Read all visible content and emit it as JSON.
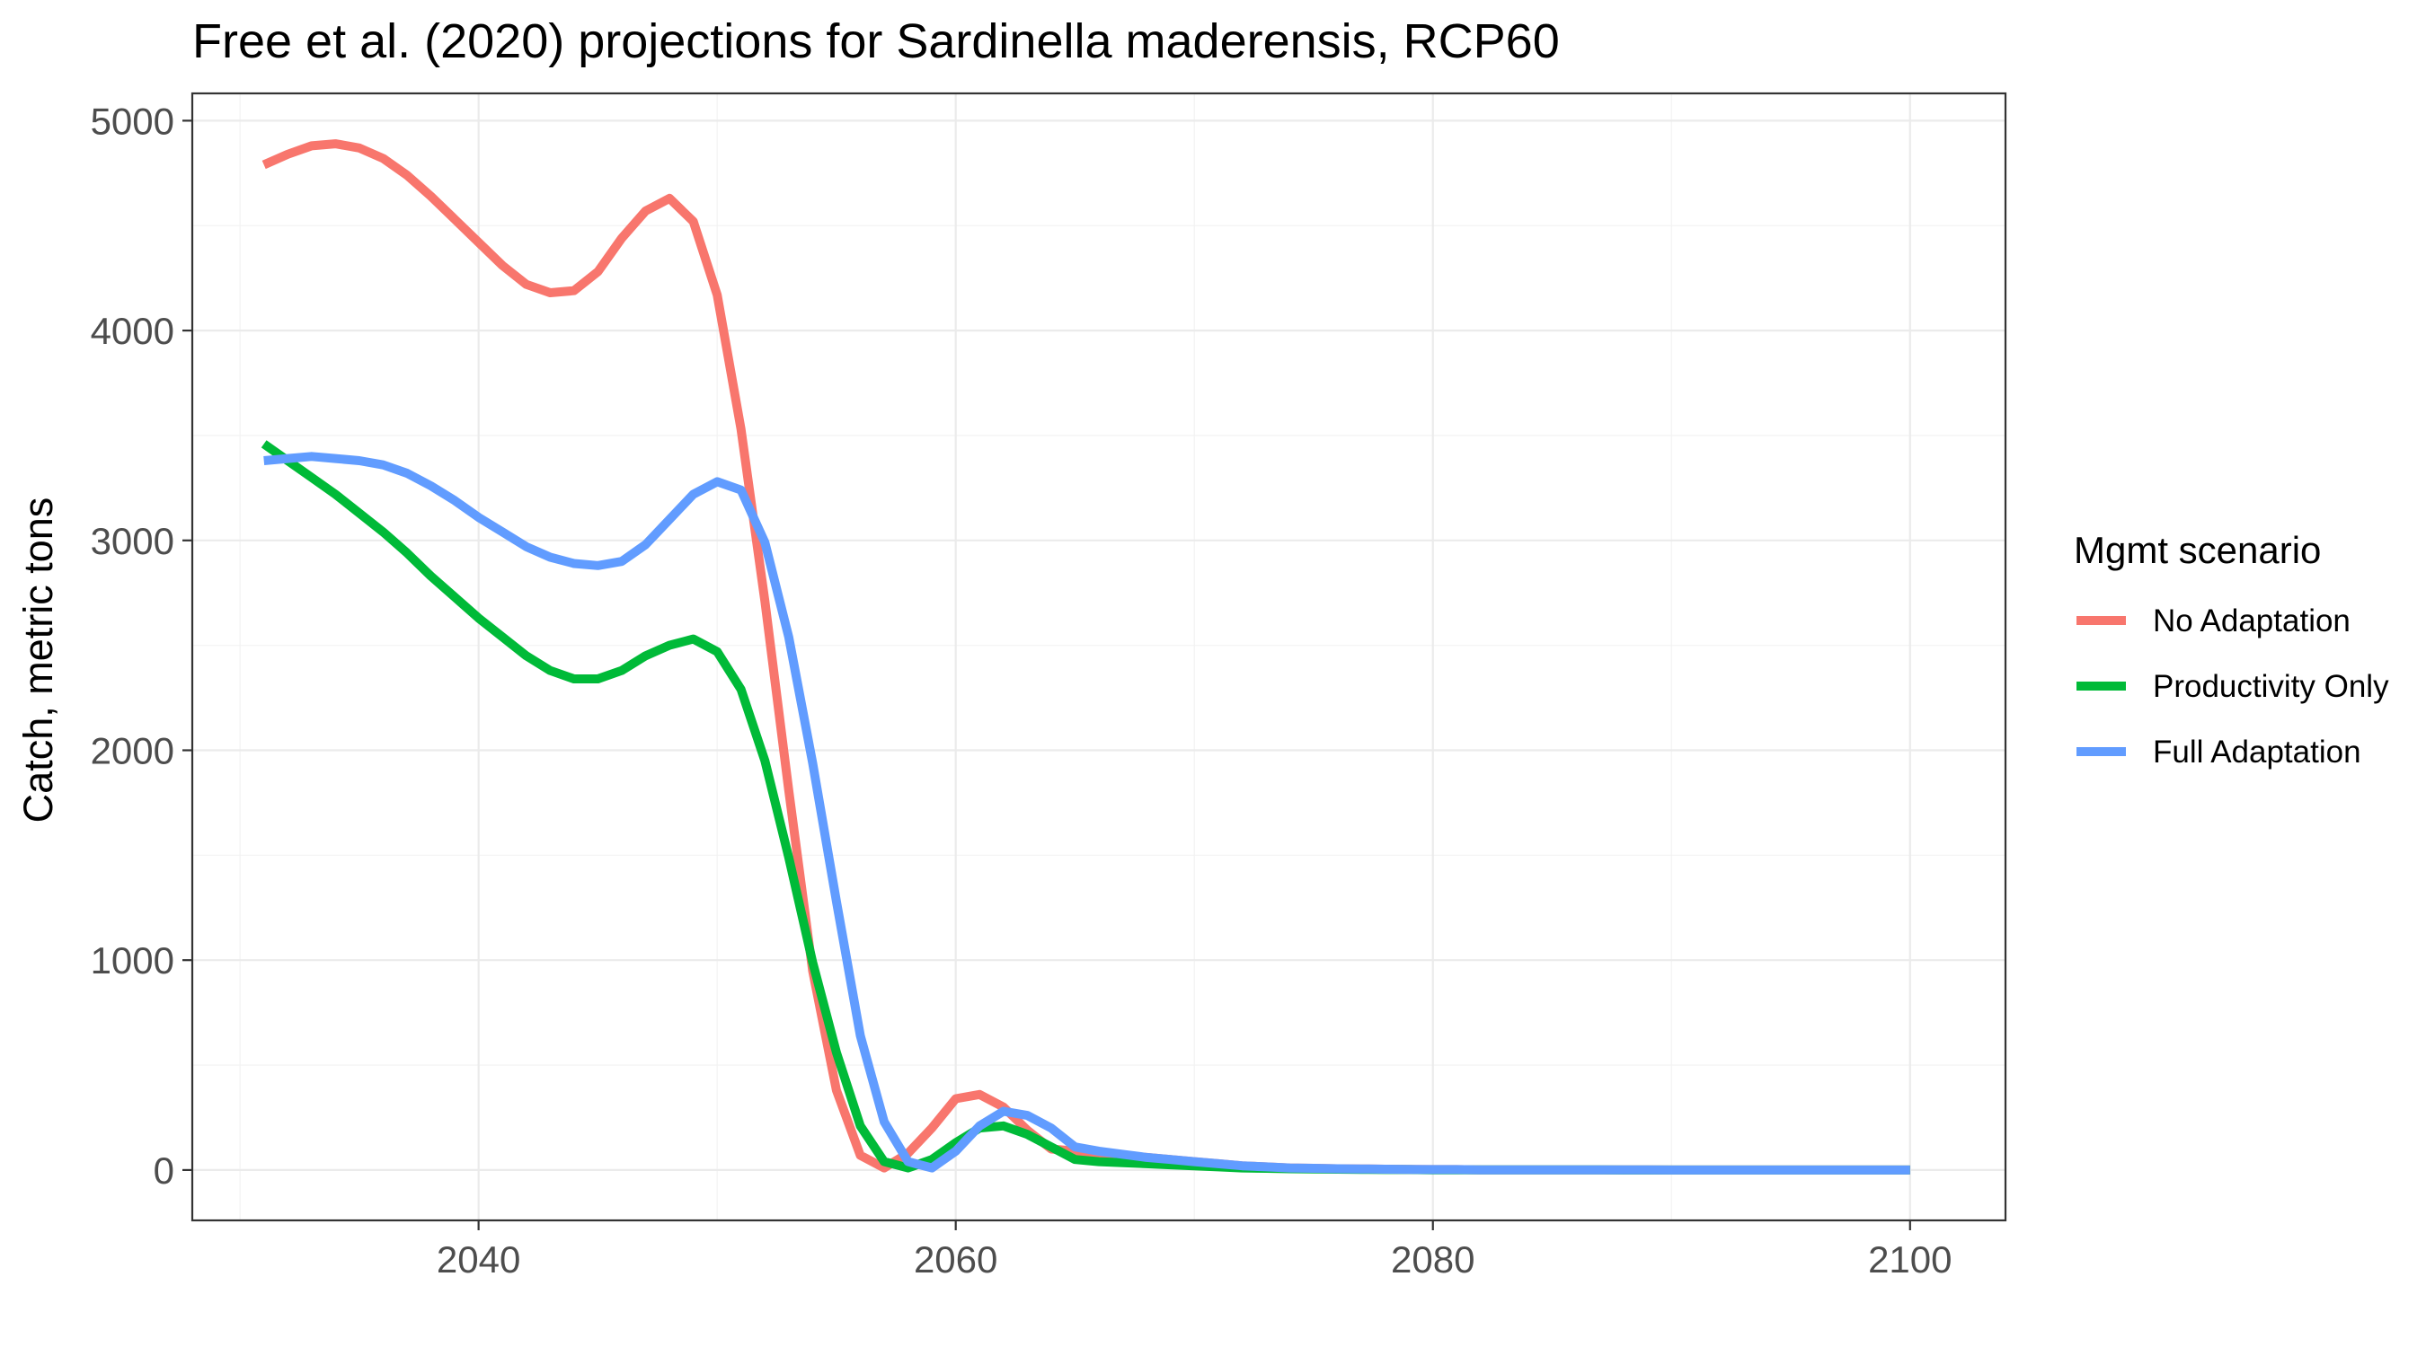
{
  "chart_data": {
    "type": "line",
    "title": "Free et al. (2020) projections for Sardinella maderensis, RCP60",
    "xlabel": "",
    "ylabel": "Catch, metric tons",
    "xlim": [
      2028,
      2104
    ],
    "ylim": [
      -240,
      5130
    ],
    "x_ticks": [
      2040,
      2060,
      2080,
      2100
    ],
    "y_ticks": [
      0,
      1000,
      2000,
      3000,
      4000,
      5000
    ],
    "x_tick_labels": [
      "2040",
      "2060",
      "2080",
      "2100"
    ],
    "y_tick_labels": [
      "0",
      "1000",
      "2000",
      "3000",
      "4000",
      "5000"
    ],
    "grid": true,
    "legend": {
      "title": "Mgmt scenario",
      "position": "right"
    },
    "x": [
      2031,
      2032,
      2033,
      2034,
      2035,
      2036,
      2037,
      2038,
      2039,
      2040,
      2041,
      2042,
      2043,
      2044,
      2045,
      2046,
      2047,
      2048,
      2049,
      2050,
      2051,
      2052,
      2053,
      2054,
      2055,
      2056,
      2057,
      2058,
      2059,
      2060,
      2061,
      2062,
      2063,
      2064,
      2065,
      2066,
      2067,
      2068,
      2069,
      2070,
      2071,
      2072,
      2073,
      2074,
      2075,
      2076,
      2077,
      2078,
      2079,
      2080,
      2081,
      2082,
      2083,
      2084,
      2085,
      2086,
      2087,
      2088,
      2089,
      2090,
      2091,
      2092,
      2093,
      2094,
      2095,
      2096,
      2097,
      2098,
      2099,
      2100
    ],
    "series": [
      {
        "name": "No Adaptation",
        "color": "#F8766D",
        "values": [
          4790,
          4840,
          4880,
          4890,
          4870,
          4820,
          4740,
          4640,
          4530,
          4420,
          4310,
          4220,
          4180,
          4190,
          4280,
          4440,
          4570,
          4630,
          4520,
          4170,
          3530,
          2710,
          1810,
          950,
          380,
          70,
          10,
          80,
          200,
          340,
          360,
          300,
          190,
          100,
          90,
          80,
          70,
          60,
          50,
          40,
          30,
          20,
          15,
          10,
          8,
          6,
          5,
          4,
          3,
          2,
          2,
          1,
          1,
          1,
          1,
          1,
          1,
          1,
          1,
          0,
          0,
          0,
          0,
          0,
          0,
          0,
          0,
          0,
          0,
          0
        ]
      },
      {
        "name": "Productivity Only",
        "color": "#00BA38",
        "values": [
          3460,
          3380,
          3300,
          3220,
          3130,
          3040,
          2940,
          2830,
          2730,
          2630,
          2540,
          2450,
          2380,
          2340,
          2340,
          2380,
          2450,
          2500,
          2530,
          2470,
          2290,
          1950,
          1490,
          990,
          560,
          210,
          40,
          10,
          50,
          130,
          200,
          210,
          170,
          110,
          50,
          40,
          35,
          30,
          25,
          20,
          15,
          10,
          8,
          6,
          5,
          4,
          3,
          2,
          2,
          1,
          1,
          1,
          1,
          1,
          1,
          1,
          1,
          0,
          0,
          0,
          0,
          0,
          0,
          0,
          0,
          0,
          0,
          0,
          0,
          0
        ]
      },
      {
        "name": "Full Adaptation",
        "color": "#619CFF",
        "values": [
          3380,
          3390,
          3400,
          3390,
          3380,
          3360,
          3320,
          3260,
          3190,
          3110,
          3040,
          2970,
          2920,
          2890,
          2880,
          2900,
          2980,
          3100,
          3220,
          3280,
          3240,
          2990,
          2540,
          1940,
          1280,
          640,
          230,
          40,
          10,
          90,
          210,
          280,
          260,
          200,
          110,
          90,
          75,
          60,
          50,
          40,
          30,
          20,
          15,
          10,
          8,
          6,
          5,
          4,
          3,
          2,
          2,
          1,
          1,
          1,
          1,
          1,
          1,
          1,
          1,
          0,
          0,
          0,
          0,
          0,
          0,
          0,
          0,
          0,
          0,
          0
        ]
      }
    ]
  }
}
